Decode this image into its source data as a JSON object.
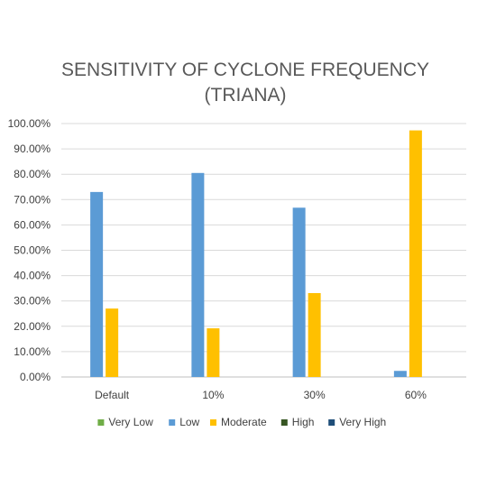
{
  "chart_data": {
    "type": "bar",
    "title_lines": [
      "SENSITIVITY OF CYCLONE FREQUENCY",
      "(TRIANA)"
    ],
    "categories": [
      "Default",
      "10%",
      "30%",
      "60%"
    ],
    "series": [
      {
        "name": "Very Low",
        "color": "#70ad47",
        "values": [
          0,
          0,
          0,
          0
        ]
      },
      {
        "name": "Low",
        "color": "#5b9bd5",
        "values": [
          73,
          80.5,
          66.8,
          2.4
        ]
      },
      {
        "name": "Moderate",
        "color": "#ffc000",
        "values": [
          27,
          19.2,
          33.1,
          97.3
        ]
      },
      {
        "name": "High",
        "color": "#375623",
        "values": [
          0,
          0,
          0,
          0
        ]
      },
      {
        "name": "Very High",
        "color": "#1f4e79",
        "values": [
          0,
          0,
          0,
          0
        ]
      }
    ],
    "ylim": [
      0,
      100
    ],
    "ytick_step": 10,
    "ytick_labels": [
      "0.00%",
      "10.00%",
      "20.00%",
      "30.00%",
      "40.00%",
      "50.00%",
      "60.00%",
      "70.00%",
      "80.00%",
      "90.00%",
      "100.00%"
    ],
    "grid": true,
    "legend_position": "bottom"
  }
}
